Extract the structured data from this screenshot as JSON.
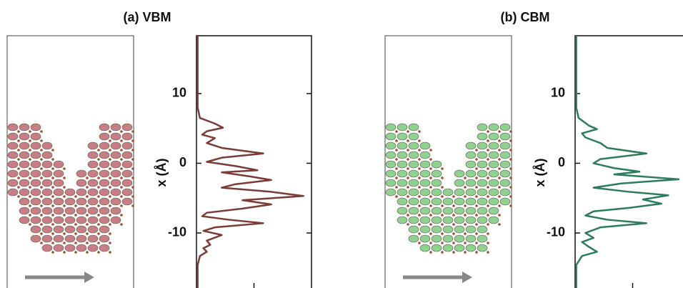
{
  "chart_data": [
    {
      "type": "line",
      "title": "(a) VBM",
      "x_label": "x (Å)",
      "color": "#7b3b36",
      "x": [
        18.3,
        8.0,
        6.5,
        5.7,
        5.1,
        4.6,
        4.1,
        3.6,
        2.9,
        2.2,
        1.4,
        0.8,
        0.2,
        -0.4,
        -1.0,
        -1.3,
        -1.9,
        -2.4,
        -3.0,
        -3.5,
        -4.1,
        -4.7,
        -5.3,
        -5.9,
        -6.5,
        -7.1,
        -7.6,
        -8.1,
        -8.6,
        -9.2,
        -9.7,
        -10.3,
        -11.1,
        -11.7,
        -12.2,
        -12.7,
        -13.3,
        -14.6,
        -17.9
      ],
      "values": [
        0.01,
        0.01,
        0.03,
        0.16,
        0.23,
        0.09,
        0.05,
        0.16,
        0.09,
        0.22,
        0.58,
        0.22,
        0.09,
        0.34,
        0.53,
        0.22,
        0.47,
        0.65,
        0.34,
        0.22,
        0.65,
        0.93,
        0.4,
        0.65,
        0.4,
        0.09,
        0.05,
        0.28,
        0.58,
        0.16,
        0.06,
        0.22,
        0.09,
        0.12,
        0.06,
        0.09,
        0.03,
        0.01,
        0.01
      ],
      "xlim": [
        -17.9,
        18.3
      ],
      "xticks": [
        -10,
        0,
        10
      ],
      "ylim": [
        0,
        1
      ],
      "yticks": [
        0.5
      ]
    },
    {
      "type": "line",
      "title": "(b) CBM",
      "x_label": "x (Å)",
      "color": "#2e7d5a",
      "x": [
        18.3,
        8.0,
        6.5,
        5.4,
        4.9,
        4.3,
        3.7,
        2.9,
        2.2,
        1.4,
        0.6,
        0,
        -0.7,
        -1.2,
        -1.6,
        -2.3,
        -2.9,
        -3.5,
        -4.1,
        -4.6,
        -5.2,
        -5.8,
        -6.4,
        -6.9,
        -7.5,
        -8.1,
        -8.6,
        -9.2,
        -10.0,
        -10.7,
        -11.3,
        -12.0,
        -12.7,
        -13.3,
        -14.6,
        -17.9
      ],
      "values": [
        0.01,
        0.01,
        0.03,
        0.12,
        0.19,
        0.06,
        0.09,
        0.22,
        0.28,
        0.62,
        0.22,
        0.16,
        0.34,
        0.56,
        0.34,
        0.9,
        0.4,
        0.16,
        0.47,
        0.81,
        0.59,
        0.75,
        0.47,
        0.16,
        0.09,
        0.28,
        0.62,
        0.22,
        0.09,
        0.16,
        0.06,
        0.12,
        0.19,
        0.06,
        0.01,
        0.01
      ],
      "xlim": [
        -17.9,
        18.3
      ],
      "xticks": [
        -10,
        0,
        10
      ],
      "ylim": [
        0,
        1
      ],
      "yticks": [
        0.5
      ]
    }
  ]
}
